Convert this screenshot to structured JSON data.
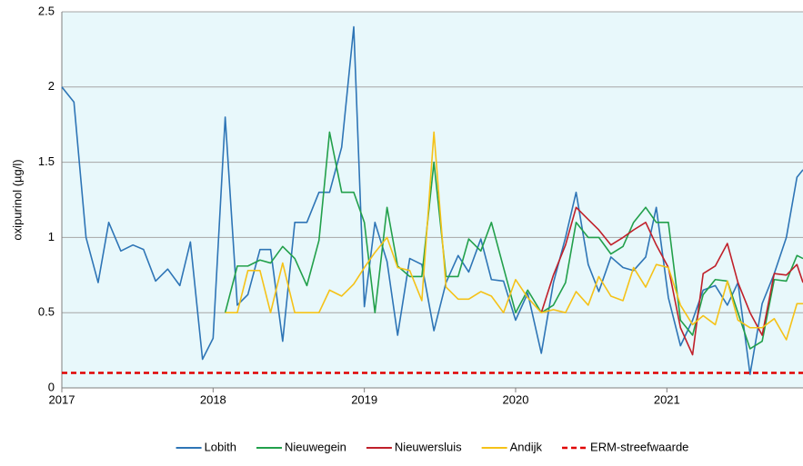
{
  "chart_data": {
    "type": "line",
    "ylabel": "oxipurinol  (µg/l)",
    "xlim": [
      2017,
      2021.9
    ],
    "xticks": [
      2017,
      2018,
      2019,
      2020,
      2021
    ],
    "ylim": [
      0,
      2.5
    ],
    "yticks": [
      0,
      0.5,
      1,
      1.5,
      2,
      2.5
    ],
    "grid": true,
    "legend": "bottom",
    "x": [
      2017.0,
      2017.08,
      2017.16,
      2017.24,
      2017.31,
      2017.39,
      2017.47,
      2017.54,
      2017.62,
      2017.7,
      2017.78,
      2017.85,
      2017.93,
      2018.0,
      2018.08,
      2018.16,
      2018.23,
      2018.31,
      2018.38,
      2018.46,
      2018.54,
      2018.62,
      2018.7,
      2018.77,
      2018.85,
      2018.93,
      2019.0,
      2019.07,
      2019.15,
      2019.22,
      2019.3,
      2019.38,
      2019.46,
      2019.54,
      2019.62,
      2019.69,
      2019.77,
      2019.84,
      2019.92,
      2020.0,
      2020.08,
      2020.17,
      2020.25,
      2020.33,
      2020.4,
      2020.48,
      2020.55,
      2020.63,
      2020.71,
      2020.78,
      2020.86,
      2020.93,
      2021.01,
      2021.09,
      2021.17,
      2021.24,
      2021.32,
      2021.4,
      2021.47,
      2021.55,
      2021.63,
      2021.71,
      2021.79,
      2021.86,
      2021.9
    ],
    "series": [
      {
        "name": "Lobith",
        "color": "#2e75b6",
        "values": [
          2.0,
          1.9,
          1.0,
          0.7,
          1.1,
          0.91,
          0.95,
          0.92,
          0.71,
          0.79,
          0.68,
          0.97,
          0.19,
          0.33,
          1.8,
          0.55,
          0.62,
          0.92,
          0.92,
          0.31,
          1.1,
          1.1,
          1.3,
          1.3,
          1.6,
          2.4,
          0.54,
          1.1,
          0.84,
          0.35,
          0.86,
          0.82,
          0.38,
          0.7,
          0.88,
          0.77,
          0.99,
          0.72,
          0.71,
          0.45,
          0.63,
          0.23,
          0.7,
          1.0,
          1.3,
          0.82,
          0.64,
          0.87,
          0.8,
          0.78,
          0.87,
          1.2,
          0.6,
          0.28,
          0.45,
          0.65,
          0.68,
          0.55,
          0.7,
          0.09,
          0.56,
          0.76,
          1.0,
          1.4,
          1.45
        ]
      },
      {
        "name": "Nieuwegein",
        "color": "#22a04b",
        "values": [
          null,
          null,
          null,
          null,
          null,
          null,
          null,
          null,
          null,
          null,
          null,
          null,
          null,
          null,
          0.5,
          0.81,
          0.81,
          0.85,
          0.83,
          0.94,
          0.86,
          0.68,
          0.98,
          1.7,
          1.3,
          1.3,
          1.1,
          0.5,
          1.2,
          0.81,
          0.74,
          0.74,
          1.5,
          0.74,
          0.74,
          0.99,
          0.91,
          1.1,
          0.8,
          0.5,
          0.65,
          0.5,
          0.55,
          0.7,
          1.1,
          1.0,
          1.0,
          0.89,
          0.94,
          1.1,
          1.2,
          1.1,
          1.1,
          0.45,
          0.35,
          0.62,
          0.72,
          0.71,
          0.5,
          0.26,
          0.31,
          0.72,
          0.71,
          0.88,
          0.86
        ]
      },
      {
        "name": "Nieuwersluis",
        "color": "#c0202a",
        "values": [
          null,
          null,
          null,
          null,
          null,
          null,
          null,
          null,
          null,
          null,
          null,
          null,
          null,
          null,
          null,
          null,
          null,
          null,
          null,
          null,
          null,
          null,
          null,
          null,
          null,
          null,
          null,
          null,
          null,
          null,
          null,
          null,
          null,
          null,
          null,
          null,
          null,
          null,
          null,
          null,
          null,
          0.5,
          0.75,
          0.95,
          1.2,
          1.12,
          1.05,
          0.95,
          1.0,
          1.05,
          1.1,
          0.95,
          0.8,
          0.4,
          0.22,
          0.76,
          0.81,
          0.96,
          0.7,
          0.5,
          0.35,
          0.76,
          0.75,
          0.82,
          0.7
        ]
      },
      {
        "name": "Andijk",
        "color": "#f5c218",
        "values": [
          null,
          null,
          null,
          null,
          null,
          null,
          null,
          null,
          null,
          null,
          null,
          null,
          null,
          null,
          0.5,
          0.5,
          0.78,
          0.78,
          0.5,
          0.83,
          0.5,
          0.5,
          0.5,
          0.65,
          0.61,
          0.69,
          0.8,
          0.9,
          1.0,
          0.8,
          0.78,
          0.58,
          1.7,
          0.67,
          0.59,
          0.59,
          0.64,
          0.61,
          0.5,
          0.72,
          0.6,
          0.5,
          0.52,
          0.5,
          0.64,
          0.55,
          0.74,
          0.61,
          0.58,
          0.8,
          0.67,
          0.82,
          0.8,
          0.55,
          0.42,
          0.48,
          0.42,
          0.71,
          0.45,
          0.4,
          0.4,
          0.46,
          0.32,
          0.56,
          0.56
        ]
      }
    ],
    "reference": {
      "name": "ERM-streefwaarde",
      "color": "#e00000",
      "value": 0.1,
      "dash": true
    }
  }
}
